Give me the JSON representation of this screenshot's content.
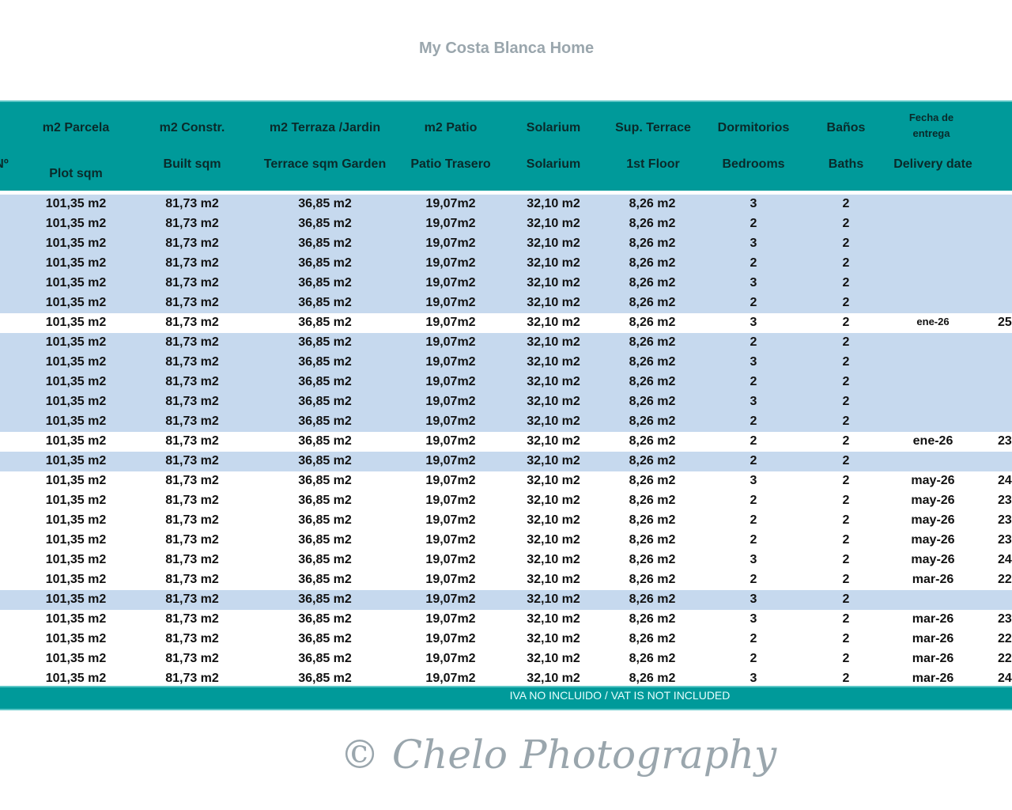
{
  "header": {
    "no_label": "Nº",
    "columns": [
      {
        "es": "m2 Parcela",
        "en": "Plot  sqm"
      },
      {
        "es": "m2 Constr.",
        "en": "Built sqm"
      },
      {
        "es": "m2 Terraza /Jardin",
        "en": "Terrace sqm Garden"
      },
      {
        "es": "m2 Patio",
        "en": "Patio Trasero"
      },
      {
        "es": "Solarium",
        "en": "Solarium"
      },
      {
        "es": "Sup. Terrace",
        "en": "1st Floor"
      },
      {
        "es": "Dormitorios",
        "en": "Bedrooms"
      },
      {
        "es": "Baños",
        "en": "Baths"
      },
      {
        "es": "Fecha de entrega",
        "en": "Delivery date"
      }
    ]
  },
  "row_colors": {
    "available_bg": "#ffffff",
    "other_bg": "#c6d9ee",
    "header_bg": "#009a9a"
  },
  "rows": [
    {
      "plot": "101,35 m2",
      "built": "81,73 m2",
      "terrace": "36,85 m2",
      "patio": "19,07m2",
      "solarium": "32,10 m2",
      "first_floor": "8,26 m2",
      "bedrooms": "3",
      "baths": "2",
      "delivery": "",
      "price": "",
      "highlight": false
    },
    {
      "plot": "101,35 m2",
      "built": "81,73 m2",
      "terrace": "36,85 m2",
      "patio": "19,07m2",
      "solarium": "32,10 m2",
      "first_floor": "8,26 m2",
      "bedrooms": "2",
      "baths": "2",
      "delivery": "",
      "price": "",
      "highlight": false
    },
    {
      "plot": "101,35 m2",
      "built": "81,73 m2",
      "terrace": "36,85 m2",
      "patio": "19,07m2",
      "solarium": "32,10 m2",
      "first_floor": "8,26 m2",
      "bedrooms": "3",
      "baths": "2",
      "delivery": "",
      "price": "",
      "highlight": false
    },
    {
      "plot": "101,35 m2",
      "built": "81,73 m2",
      "terrace": "36,85 m2",
      "patio": "19,07m2",
      "solarium": "32,10 m2",
      "first_floor": "8,26 m2",
      "bedrooms": "2",
      "baths": "2",
      "delivery": "",
      "price": "",
      "highlight": false
    },
    {
      "plot": "101,35 m2",
      "built": "81,73 m2",
      "terrace": "36,85 m2",
      "patio": "19,07m2",
      "solarium": "32,10 m2",
      "first_floor": "8,26 m2",
      "bedrooms": "3",
      "baths": "2",
      "delivery": "",
      "price": "",
      "highlight": false
    },
    {
      "plot": "101,35 m2",
      "built": "81,73 m2",
      "terrace": "36,85 m2",
      "patio": "19,07m2",
      "solarium": "32,10 m2",
      "first_floor": "8,26 m2",
      "bedrooms": "2",
      "baths": "2",
      "delivery": "",
      "price": "",
      "highlight": false
    },
    {
      "plot": "101,35 m2",
      "built": "81,73 m2",
      "terrace": "36,85 m2",
      "patio": "19,07m2",
      "solarium": "32,10 m2",
      "first_floor": "8,26 m2",
      "bedrooms": "3",
      "baths": "2",
      "delivery": "ene-26",
      "price": "25",
      "highlight": true
    },
    {
      "plot": "101,35 m2",
      "built": "81,73 m2",
      "terrace": "36,85 m2",
      "patio": "19,07m2",
      "solarium": "32,10 m2",
      "first_floor": "8,26 m2",
      "bedrooms": "2",
      "baths": "2",
      "delivery": "",
      "price": "",
      "highlight": false
    },
    {
      "plot": "101,35 m2",
      "built": "81,73 m2",
      "terrace": "36,85 m2",
      "patio": "19,07m2",
      "solarium": "32,10 m2",
      "first_floor": "8,26 m2",
      "bedrooms": "3",
      "baths": "2",
      "delivery": "",
      "price": "",
      "highlight": false
    },
    {
      "plot": "101,35 m2",
      "built": "81,73 m2",
      "terrace": "36,85 m2",
      "patio": "19,07m2",
      "solarium": "32,10 m2",
      "first_floor": "8,26 m2",
      "bedrooms": "2",
      "baths": "2",
      "delivery": "",
      "price": "",
      "highlight": false
    },
    {
      "plot": "101,35 m2",
      "built": "81,73 m2",
      "terrace": "36,85 m2",
      "patio": "19,07m2",
      "solarium": "32,10 m2",
      "first_floor": "8,26 m2",
      "bedrooms": "3",
      "baths": "2",
      "delivery": "",
      "price": "",
      "highlight": false
    },
    {
      "plot": "101,35 m2",
      "built": "81,73 m2",
      "terrace": "36,85 m2",
      "patio": "19,07m2",
      "solarium": "32,10 m2",
      "first_floor": "8,26 m2",
      "bedrooms": "2",
      "baths": "2",
      "delivery": "",
      "price": "",
      "highlight": false
    },
    {
      "plot": "101,35 m2",
      "built": "81,73 m2",
      "terrace": "36,85 m2",
      "patio": "19,07m2",
      "solarium": "32,10 m2",
      "first_floor": "8,26 m2",
      "bedrooms": "2",
      "baths": "2",
      "delivery": "ene-26",
      "price": "23",
      "highlight": true
    },
    {
      "plot": "101,35 m2",
      "built": "81,73 m2",
      "terrace": "36,85 m2",
      "patio": "19,07m2",
      "solarium": "32,10 m2",
      "first_floor": "8,26 m2",
      "bedrooms": "2",
      "baths": "2",
      "delivery": "",
      "price": "",
      "highlight": false
    },
    {
      "plot": "101,35 m2",
      "built": "81,73 m2",
      "terrace": "36,85 m2",
      "patio": "19,07m2",
      "solarium": "32,10 m2",
      "first_floor": "8,26 m2",
      "bedrooms": "3",
      "baths": "2",
      "delivery": "may-26",
      "price": "24",
      "highlight": true
    },
    {
      "plot": "101,35 m2",
      "built": "81,73 m2",
      "terrace": "36,85 m2",
      "patio": "19,07m2",
      "solarium": "32,10 m2",
      "first_floor": "8,26 m2",
      "bedrooms": "2",
      "baths": "2",
      "delivery": "may-26",
      "price": "23",
      "highlight": true
    },
    {
      "plot": "101,35 m2",
      "built": "81,73 m2",
      "terrace": "36,85 m2",
      "patio": "19,07m2",
      "solarium": "32,10 m2",
      "first_floor": "8,26 m2",
      "bedrooms": "2",
      "baths": "2",
      "delivery": "may-26",
      "price": "23",
      "highlight": true
    },
    {
      "plot": "101,35 m2",
      "built": "81,73 m2",
      "terrace": "36,85 m2",
      "patio": "19,07m2",
      "solarium": "32,10 m2",
      "first_floor": "8,26 m2",
      "bedrooms": "2",
      "baths": "2",
      "delivery": "may-26",
      "price": "23",
      "highlight": true
    },
    {
      "plot": "101,35 m2",
      "built": "81,73 m2",
      "terrace": "36,85 m2",
      "patio": "19,07m2",
      "solarium": "32,10 m2",
      "first_floor": "8,26 m2",
      "bedrooms": "3",
      "baths": "2",
      "delivery": "may-26",
      "price": "24",
      "highlight": true
    },
    {
      "plot": "101,35 m2",
      "built": "81,73 m2",
      "terrace": "36,85 m2",
      "patio": "19,07m2",
      "solarium": "32,10 m2",
      "first_floor": "8,26 m2",
      "bedrooms": "2",
      "baths": "2",
      "delivery": "mar-26",
      "price": "22",
      "highlight": true
    },
    {
      "plot": "101,35 m2",
      "built": "81,73 m2",
      "terrace": "36,85 m2",
      "patio": "19,07m2",
      "solarium": "32,10 m2",
      "first_floor": "8,26 m2",
      "bedrooms": "3",
      "baths": "2",
      "delivery": "",
      "price": "",
      "highlight": false
    },
    {
      "plot": "101,35 m2",
      "built": "81,73 m2",
      "terrace": "36,85 m2",
      "patio": "19,07m2",
      "solarium": "32,10 m2",
      "first_floor": "8,26 m2",
      "bedrooms": "3",
      "baths": "2",
      "delivery": "mar-26",
      "price": "23",
      "highlight": true
    },
    {
      "plot": "101,35 m2",
      "built": "81,73 m2",
      "terrace": "36,85 m2",
      "patio": "19,07m2",
      "solarium": "32,10 m2",
      "first_floor": "8,26 m2",
      "bedrooms": "2",
      "baths": "2",
      "delivery": "mar-26",
      "price": "22",
      "highlight": true
    },
    {
      "plot": "101,35 m2",
      "built": "81,73 m2",
      "terrace": "36,85 m2",
      "patio": "19,07m2",
      "solarium": "32,10 m2",
      "first_floor": "8,26 m2",
      "bedrooms": "2",
      "baths": "2",
      "delivery": "mar-26",
      "price": "22",
      "highlight": true
    },
    {
      "plot": "101,35 m2",
      "built": "81,73 m2",
      "terrace": "36,85 m2",
      "patio": "19,07m2",
      "solarium": "32,10 m2",
      "first_floor": "8,26 m2",
      "bedrooms": "3",
      "baths": "2",
      "delivery": "mar-26",
      "price": "24",
      "highlight": true
    }
  ],
  "footer": {
    "vat_note": "IVA NO INCLUIDO / VAT IS NOT INCLUDED"
  },
  "watermarks": {
    "logo": "My Costa Blanca Home",
    "photo": "© Chelo Photography"
  }
}
